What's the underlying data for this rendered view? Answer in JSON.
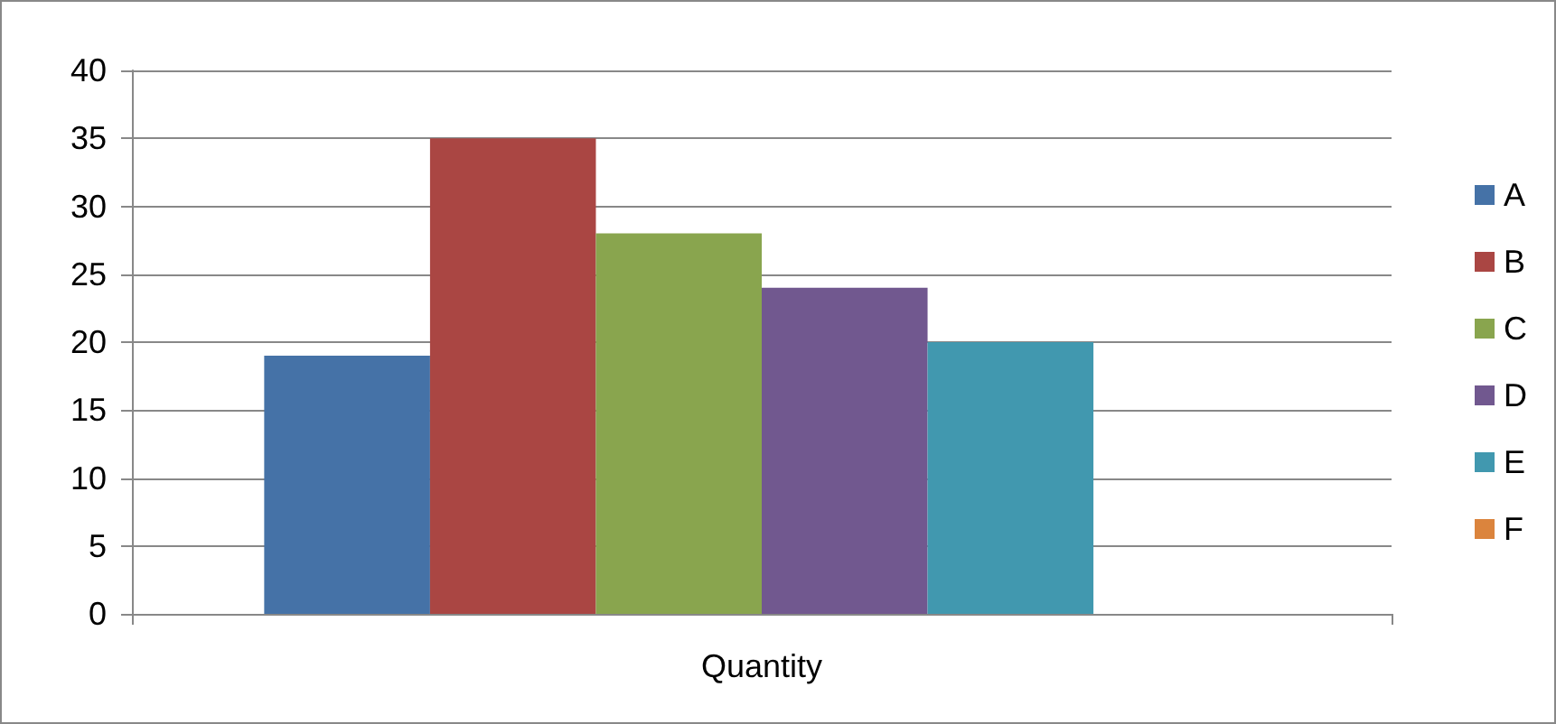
{
  "chart_data": {
    "type": "bar",
    "categories": [
      "Quantity"
    ],
    "series": [
      {
        "name": "A",
        "color": "#4572a7",
        "values": [
          19
        ]
      },
      {
        "name": "B",
        "color": "#aa4643",
        "values": [
          35
        ]
      },
      {
        "name": "C",
        "color": "#89a54e",
        "values": [
          28
        ]
      },
      {
        "name": "D",
        "color": "#71588f",
        "values": [
          24
        ]
      },
      {
        "name": "E",
        "color": "#4198af",
        "values": [
          20
        ]
      },
      {
        "name": "F",
        "color": "#db843d",
        "values": [
          0
        ]
      }
    ],
    "ylim": [
      0,
      40
    ],
    "yticks": [
      0,
      5,
      10,
      15,
      20,
      25,
      30,
      35,
      40
    ],
    "grid": "y",
    "legend": "right"
  }
}
